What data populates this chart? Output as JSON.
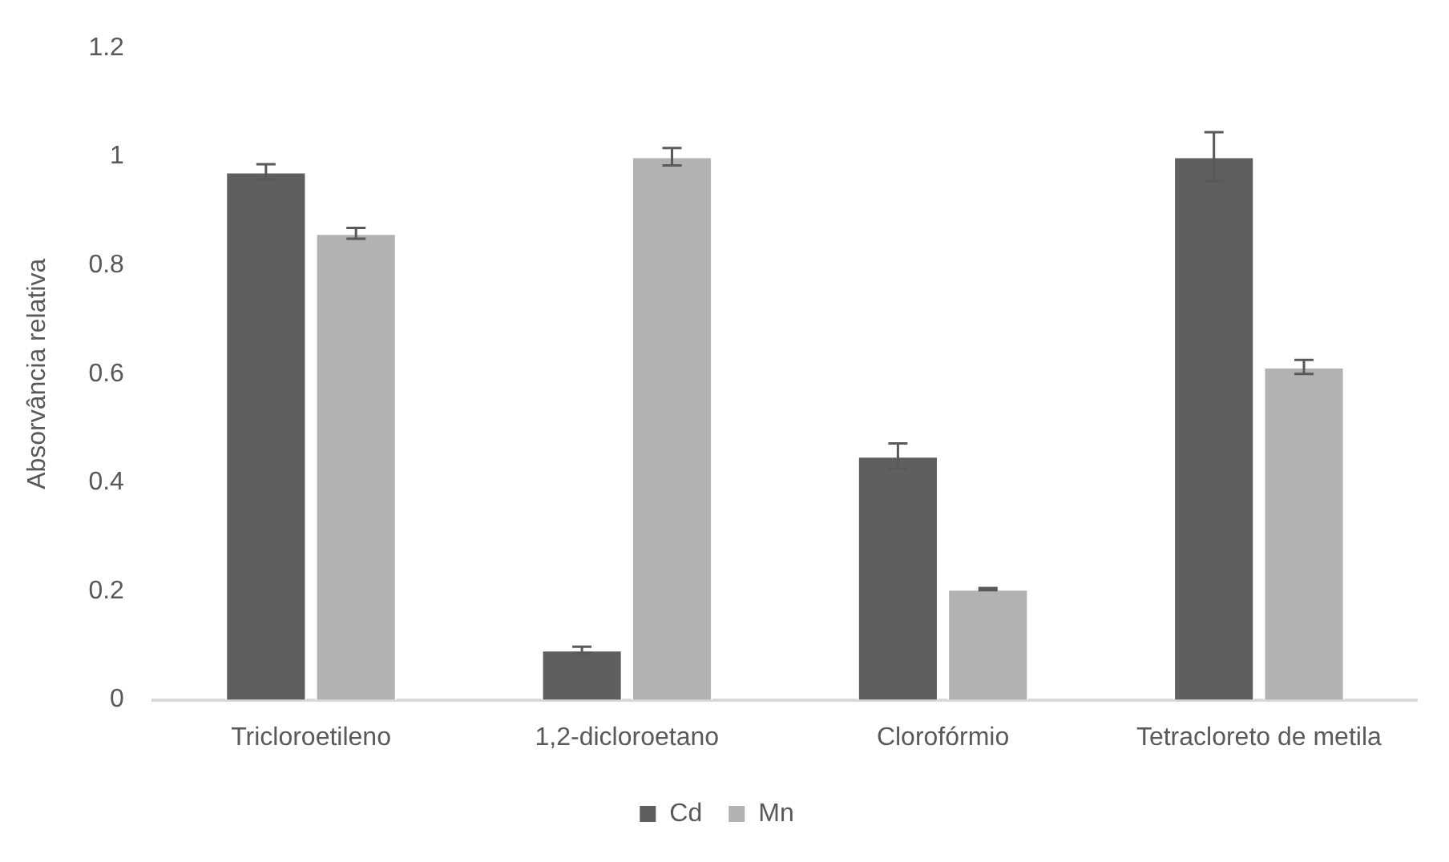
{
  "chart_data": {
    "type": "bar",
    "ylabel": "Absorvância relativa",
    "categories": [
      "Tricloroetileno",
      "1,2-dicloroetano",
      "Clorofórmio",
      "Tetracloreto de metila"
    ],
    "series": [
      {
        "name": "Cd",
        "color": "#5f5f5f",
        "values": [
          0.972,
          0.092,
          0.449,
          1.0
        ],
        "errors": [
          0.014,
          0.006,
          0.023,
          0.045
        ]
      },
      {
        "name": "Mn",
        "color": "#b2b2b2",
        "values": [
          0.859,
          1.0,
          0.204,
          0.613
        ],
        "errors": [
          0.01,
          0.016,
          0.002,
          0.013
        ]
      }
    ],
    "ylim": [
      0,
      1.2
    ],
    "yticks": [
      0,
      0.2,
      0.4,
      0.6,
      0.8,
      1,
      1.2
    ],
    "grid": false,
    "legend": "bottom"
  }
}
